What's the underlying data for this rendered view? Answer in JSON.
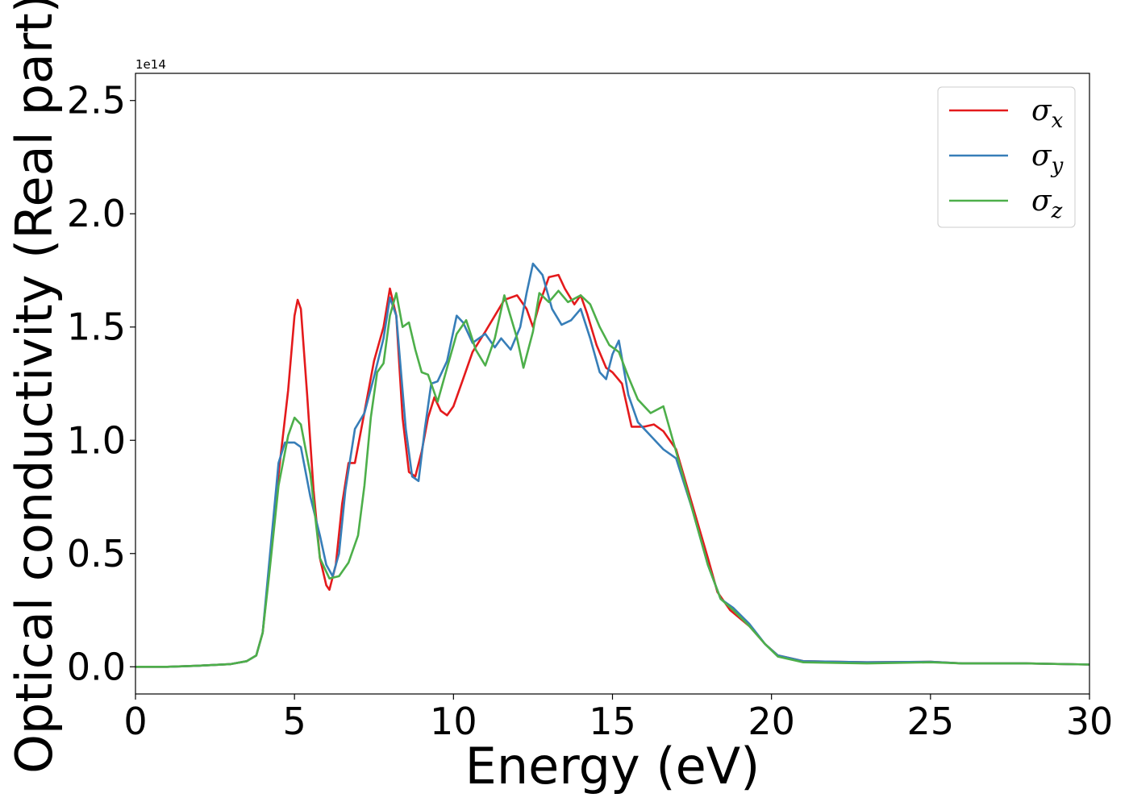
{
  "chart_data": {
    "type": "line",
    "xlabel": "Energy (eV)",
    "ylabel": "Optical conductivity (Real part)",
    "y_exponent_label": "1e14",
    "xlim": [
      0,
      30
    ],
    "ylim": [
      -0.12,
      2.62
    ],
    "x_ticks": [
      0,
      5,
      10,
      15,
      20,
      25,
      30
    ],
    "x_tick_labels": [
      "0",
      "5",
      "10",
      "15",
      "20",
      "25",
      "30"
    ],
    "y_ticks": [
      0.0,
      0.5,
      1.0,
      1.5,
      2.0,
      2.5
    ],
    "y_tick_labels": [
      "0.0",
      "0.5",
      "1.0",
      "1.5",
      "2.0",
      "2.5"
    ],
    "grid": false,
    "legend_position": "top-right",
    "series": [
      {
        "name": "σx",
        "symbol": "σ",
        "subscript": "x",
        "color": "#e41a1c",
        "points": [
          [
            0,
            0
          ],
          [
            1,
            0
          ],
          [
            2,
            0.005
          ],
          [
            3,
            0.012
          ],
          [
            3.5,
            0.025
          ],
          [
            3.8,
            0.05
          ],
          [
            4.0,
            0.15
          ],
          [
            4.2,
            0.42
          ],
          [
            4.5,
            0.85
          ],
          [
            4.8,
            1.22
          ],
          [
            5.0,
            1.55
          ],
          [
            5.1,
            1.62
          ],
          [
            5.2,
            1.58
          ],
          [
            5.4,
            1.2
          ],
          [
            5.6,
            0.78
          ],
          [
            5.8,
            0.48
          ],
          [
            6.0,
            0.36
          ],
          [
            6.1,
            0.34
          ],
          [
            6.3,
            0.45
          ],
          [
            6.5,
            0.72
          ],
          [
            6.7,
            0.9
          ],
          [
            6.9,
            0.9
          ],
          [
            7.1,
            1.05
          ],
          [
            7.3,
            1.2
          ],
          [
            7.5,
            1.35
          ],
          [
            7.8,
            1.5
          ],
          [
            8.0,
            1.67
          ],
          [
            8.2,
            1.55
          ],
          [
            8.4,
            1.1
          ],
          [
            8.6,
            0.86
          ],
          [
            8.8,
            0.84
          ],
          [
            9.0,
            0.95
          ],
          [
            9.2,
            1.1
          ],
          [
            9.4,
            1.19
          ],
          [
            9.6,
            1.13
          ],
          [
            9.8,
            1.11
          ],
          [
            10.0,
            1.15
          ],
          [
            10.3,
            1.27
          ],
          [
            10.6,
            1.39
          ],
          [
            11.0,
            1.48
          ],
          [
            11.3,
            1.55
          ],
          [
            11.6,
            1.62
          ],
          [
            12.0,
            1.64
          ],
          [
            12.3,
            1.58
          ],
          [
            12.5,
            1.5
          ],
          [
            12.7,
            1.6
          ],
          [
            13.0,
            1.72
          ],
          [
            13.3,
            1.73
          ],
          [
            13.5,
            1.67
          ],
          [
            13.8,
            1.6
          ],
          [
            14.0,
            1.64
          ],
          [
            14.2,
            1.56
          ],
          [
            14.5,
            1.42
          ],
          [
            14.8,
            1.32
          ],
          [
            15.0,
            1.3
          ],
          [
            15.3,
            1.25
          ],
          [
            15.6,
            1.06
          ],
          [
            16.0,
            1.06
          ],
          [
            16.3,
            1.07
          ],
          [
            16.6,
            1.04
          ],
          [
            17.0,
            0.96
          ],
          [
            17.5,
            0.72
          ],
          [
            18.0,
            0.48
          ],
          [
            18.3,
            0.33
          ],
          [
            18.7,
            0.25
          ],
          [
            19.3,
            0.18
          ],
          [
            19.8,
            0.1
          ],
          [
            20.2,
            0.05
          ],
          [
            21,
            0.025
          ],
          [
            23,
            0.02
          ],
          [
            25,
            0.022
          ],
          [
            26,
            0.015
          ],
          [
            28,
            0.015
          ],
          [
            30,
            0.01
          ]
        ]
      },
      {
        "name": "σy",
        "symbol": "σ",
        "subscript": "y",
        "color": "#377eb8",
        "points": [
          [
            0,
            0
          ],
          [
            1,
            0
          ],
          [
            2,
            0.005
          ],
          [
            3,
            0.012
          ],
          [
            3.5,
            0.025
          ],
          [
            3.8,
            0.05
          ],
          [
            4.0,
            0.15
          ],
          [
            4.2,
            0.45
          ],
          [
            4.5,
            0.9
          ],
          [
            4.7,
            0.99
          ],
          [
            5.0,
            0.99
          ],
          [
            5.2,
            0.97
          ],
          [
            5.5,
            0.75
          ],
          [
            5.8,
            0.58
          ],
          [
            6.0,
            0.45
          ],
          [
            6.2,
            0.4
          ],
          [
            6.4,
            0.5
          ],
          [
            6.6,
            0.78
          ],
          [
            6.9,
            1.05
          ],
          [
            7.2,
            1.12
          ],
          [
            7.5,
            1.28
          ],
          [
            7.8,
            1.45
          ],
          [
            8.0,
            1.63
          ],
          [
            8.2,
            1.55
          ],
          [
            8.5,
            1.05
          ],
          [
            8.7,
            0.84
          ],
          [
            8.9,
            0.82
          ],
          [
            9.1,
            1.05
          ],
          [
            9.3,
            1.25
          ],
          [
            9.5,
            1.26
          ],
          [
            9.8,
            1.35
          ],
          [
            10.1,
            1.55
          ],
          [
            10.3,
            1.52
          ],
          [
            10.6,
            1.43
          ],
          [
            11.0,
            1.47
          ],
          [
            11.3,
            1.41
          ],
          [
            11.5,
            1.45
          ],
          [
            11.8,
            1.4
          ],
          [
            12.1,
            1.5
          ],
          [
            12.3,
            1.65
          ],
          [
            12.5,
            1.78
          ],
          [
            12.8,
            1.73
          ],
          [
            13.1,
            1.58
          ],
          [
            13.4,
            1.51
          ],
          [
            13.7,
            1.53
          ],
          [
            14.0,
            1.58
          ],
          [
            14.3,
            1.45
          ],
          [
            14.6,
            1.3
          ],
          [
            14.8,
            1.27
          ],
          [
            15.0,
            1.38
          ],
          [
            15.2,
            1.44
          ],
          [
            15.5,
            1.2
          ],
          [
            15.8,
            1.08
          ],
          [
            16.2,
            1.02
          ],
          [
            16.6,
            0.96
          ],
          [
            17.0,
            0.92
          ],
          [
            17.5,
            0.7
          ],
          [
            18.0,
            0.45
          ],
          [
            18.4,
            0.3
          ],
          [
            18.8,
            0.26
          ],
          [
            19.3,
            0.19
          ],
          [
            19.8,
            0.1
          ],
          [
            20.2,
            0.05
          ],
          [
            21,
            0.025
          ],
          [
            23,
            0.02
          ],
          [
            25,
            0.022
          ],
          [
            26,
            0.015
          ],
          [
            28,
            0.015
          ],
          [
            30,
            0.01
          ]
        ]
      },
      {
        "name": "σz",
        "symbol": "σ",
        "subscript": "z",
        "color": "#4daf4a",
        "points": [
          [
            0,
            0
          ],
          [
            1,
            0
          ],
          [
            2,
            0.005
          ],
          [
            3,
            0.012
          ],
          [
            3.5,
            0.025
          ],
          [
            3.8,
            0.05
          ],
          [
            4.0,
            0.15
          ],
          [
            4.2,
            0.4
          ],
          [
            4.5,
            0.8
          ],
          [
            4.8,
            1.02
          ],
          [
            5.0,
            1.1
          ],
          [
            5.2,
            1.07
          ],
          [
            5.5,
            0.85
          ],
          [
            5.8,
            0.48
          ],
          [
            6.1,
            0.39
          ],
          [
            6.4,
            0.4
          ],
          [
            6.7,
            0.46
          ],
          [
            7.0,
            0.58
          ],
          [
            7.2,
            0.8
          ],
          [
            7.4,
            1.1
          ],
          [
            7.6,
            1.3
          ],
          [
            7.8,
            1.34
          ],
          [
            8.0,
            1.55
          ],
          [
            8.2,
            1.65
          ],
          [
            8.4,
            1.5
          ],
          [
            8.6,
            1.52
          ],
          [
            8.8,
            1.4
          ],
          [
            9.0,
            1.3
          ],
          [
            9.2,
            1.29
          ],
          [
            9.5,
            1.17
          ],
          [
            9.8,
            1.32
          ],
          [
            10.1,
            1.47
          ],
          [
            10.4,
            1.53
          ],
          [
            10.7,
            1.4
          ],
          [
            11.0,
            1.33
          ],
          [
            11.3,
            1.45
          ],
          [
            11.6,
            1.64
          ],
          [
            12.0,
            1.45
          ],
          [
            12.2,
            1.32
          ],
          [
            12.5,
            1.48
          ],
          [
            12.7,
            1.65
          ],
          [
            13.0,
            1.61
          ],
          [
            13.3,
            1.66
          ],
          [
            13.6,
            1.61
          ],
          [
            14.0,
            1.64
          ],
          [
            14.3,
            1.6
          ],
          [
            14.6,
            1.5
          ],
          [
            14.9,
            1.42
          ],
          [
            15.2,
            1.39
          ],
          [
            15.5,
            1.28
          ],
          [
            15.8,
            1.18
          ],
          [
            16.2,
            1.12
          ],
          [
            16.6,
            1.15
          ],
          [
            17.0,
            0.95
          ],
          [
            17.5,
            0.7
          ],
          [
            18.0,
            0.45
          ],
          [
            18.4,
            0.3
          ],
          [
            18.8,
            0.25
          ],
          [
            19.3,
            0.18
          ],
          [
            19.8,
            0.1
          ],
          [
            20.2,
            0.045
          ],
          [
            21,
            0.02
          ],
          [
            23,
            0.015
          ],
          [
            25,
            0.02
          ],
          [
            26,
            0.015
          ],
          [
            28,
            0.015
          ],
          [
            30,
            0.01
          ]
        ]
      }
    ]
  }
}
